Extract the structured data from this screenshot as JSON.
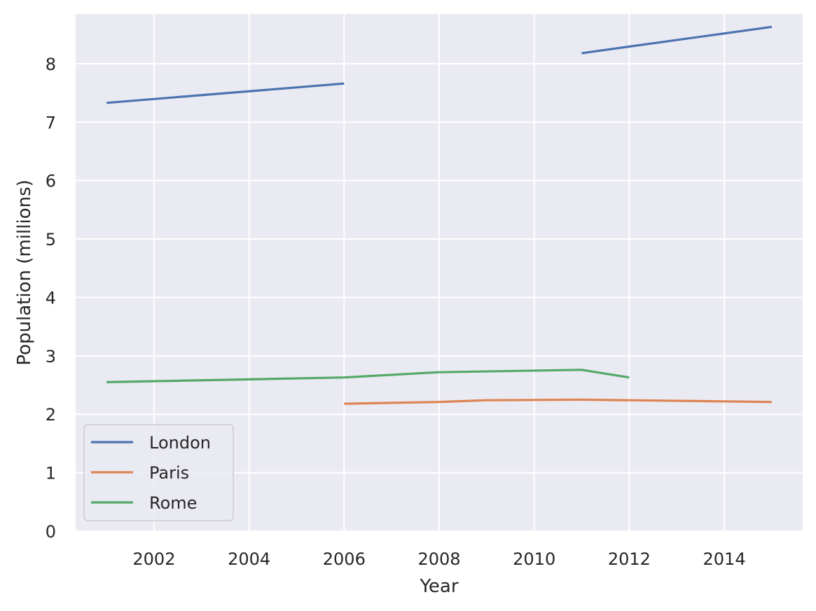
{
  "chart_data": {
    "type": "line",
    "xlabel": "Year",
    "ylabel": "Population (millions)",
    "xlim": [
      2000.35,
      2015.65
    ],
    "ylim": [
      0,
      8.85
    ],
    "xticks": [
      "2002",
      "2004",
      "2006",
      "2008",
      "2010",
      "2012",
      "2014"
    ],
    "yticks": [
      "0",
      "1",
      "2",
      "3",
      "4",
      "5",
      "6",
      "7",
      "8"
    ],
    "grid": true,
    "legend_position": "lower-left",
    "series": [
      {
        "name": "London",
        "color": "#4c72b0",
        "segments": [
          [
            [
              2001,
              7.33
            ],
            [
              2006,
              7.66
            ]
          ],
          [
            [
              2011,
              8.18
            ],
            [
              2015,
              8.63
            ]
          ]
        ]
      },
      {
        "name": "Paris",
        "color": "#dd8452",
        "segments": [
          [
            [
              2006,
              2.18
            ],
            [
              2008,
              2.21
            ],
            [
              2009,
              2.24
            ],
            [
              2011,
              2.25
            ],
            [
              2012,
              2.24
            ],
            [
              2015,
              2.21
            ]
          ]
        ]
      },
      {
        "name": "Rome",
        "color": "#55a868",
        "segments": [
          [
            [
              2001,
              2.55
            ],
            [
              2006,
              2.63
            ],
            [
              2008,
              2.72
            ],
            [
              2011,
              2.76
            ],
            [
              2012,
              2.63
            ]
          ]
        ]
      }
    ]
  }
}
